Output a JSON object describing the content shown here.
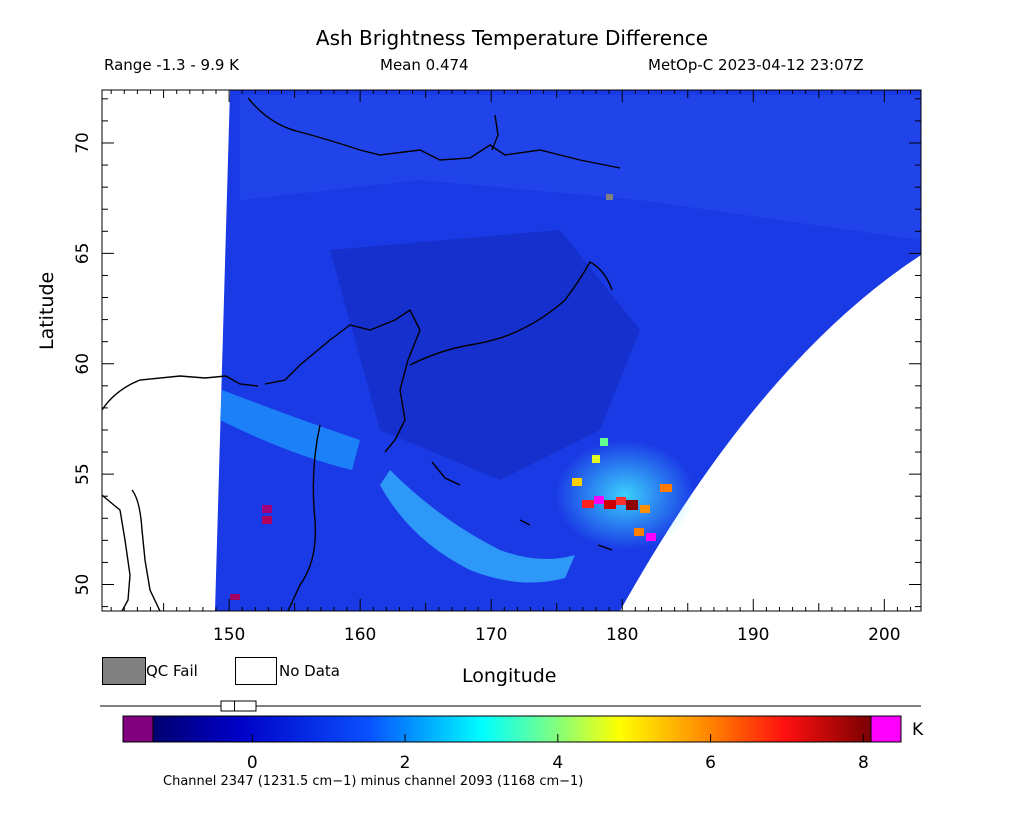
{
  "title": "Ash Brightness Temperature Difference",
  "range_text": "Range -1.3 - 9.9 K",
  "mean_text": "Mean 0.474",
  "satellite_text": "MetOp-C 2023-04-12 23:07Z",
  "axes": {
    "xlabel": "Longitude",
    "ylabel": "Latitude",
    "xlim": [
      140.3,
      202.8
    ],
    "ylim": [
      48.8,
      72.4
    ],
    "xticks": [
      150,
      160,
      170,
      180,
      190,
      200
    ],
    "yticks": [
      50,
      55,
      60,
      65,
      70
    ]
  },
  "legend": {
    "qc_fail": "QC Fail",
    "no_data": "No Data",
    "qc_color": "#808080",
    "no_data_color": "#ffffff"
  },
  "colorbar": {
    "unit": "K",
    "ticks": [
      "0",
      "2",
      "4",
      "6",
      "8"
    ],
    "tick_values": [
      0,
      2,
      4,
      6,
      8
    ],
    "vmin": -1.3,
    "vmax": 8.1,
    "range_min": -1.3,
    "range_max": 9.9,
    "mean": 0.474,
    "underflow_color": "#800080",
    "overflow_color": "#ff00ff",
    "caption": "Channel 2347 (1231.5 cm−1) minus channel 2093 (1168 cm−1)"
  },
  "colors": {
    "background_field": "#1a33e0",
    "coastline": "#000000"
  }
}
